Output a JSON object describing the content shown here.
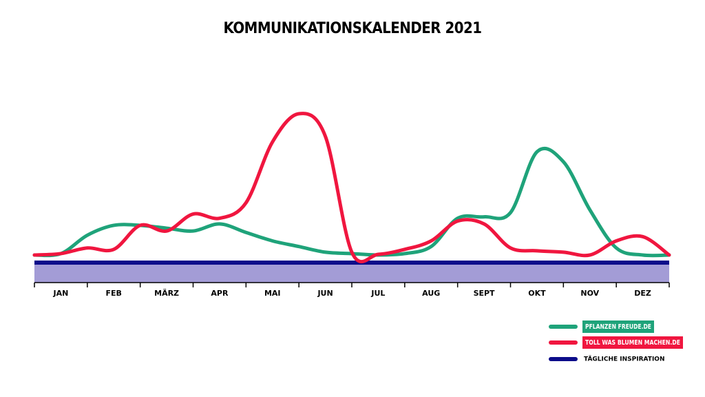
{
  "chart_data": {
    "type": "line",
    "title": "KOMMUNIKATIONSKALENDER 2021",
    "categories": [
      null,
      "JAN",
      null,
      "FEB",
      null,
      "MÄRZ",
      null,
      "APR",
      null,
      "MAI",
      null,
      "JUN",
      null,
      "JUL",
      null,
      "AUG",
      null,
      "SEPT",
      null,
      "OKT",
      null,
      "NOV",
      null,
      "DEZ",
      null
    ],
    "series": [
      {
        "name": "PFLANZEN FREUDE.DE",
        "color": "#1fa37a",
        "values": [
          0,
          1,
          14,
          21,
          21,
          19,
          17,
          22,
          16,
          10,
          6,
          2,
          1,
          0,
          1,
          6,
          26,
          27,
          30,
          73,
          66,
          32,
          5,
          0,
          0
        ]
      },
      {
        "name": "TOLL WAS BLUMEN MACHEN.DE",
        "color": "#f0163f",
        "values": [
          0,
          1,
          5,
          4,
          21,
          17,
          29,
          26,
          37,
          80,
          100,
          84,
          2,
          0.5,
          4,
          10,
          24,
          22,
          5,
          3,
          2,
          0,
          10,
          13,
          0
        ]
      }
    ],
    "baseline": {
      "name": "TÄGLICHE INSPIRATION",
      "color": "#0c0c8a"
    }
  }
}
